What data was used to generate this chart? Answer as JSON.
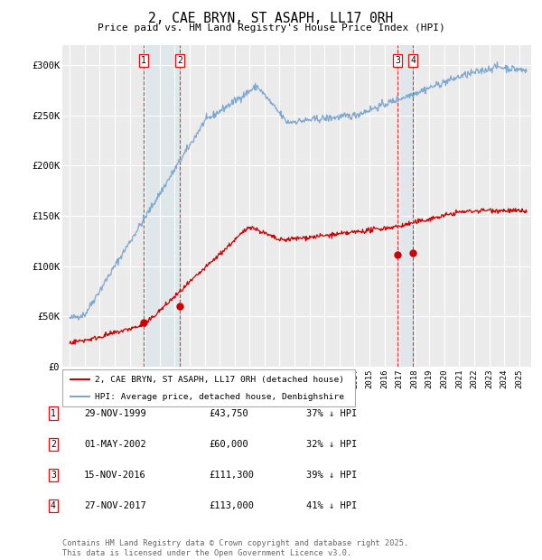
{
  "title": "2, CAE BRYN, ST ASAPH, LL17 0RH",
  "subtitle": "Price paid vs. HM Land Registry's House Price Index (HPI)",
  "ylim": [
    0,
    320000
  ],
  "yticks": [
    0,
    50000,
    100000,
    150000,
    200000,
    250000,
    300000
  ],
  "ytick_labels": [
    "£0",
    "£50K",
    "£100K",
    "£150K",
    "£200K",
    "£250K",
    "£300K"
  ],
  "background_color": "#ffffff",
  "plot_bg_color": "#ebebeb",
  "grid_color": "#ffffff",
  "hpi_color": "#7fa8d0",
  "price_color": "#cc0000",
  "purchases": [
    {
      "label": "1",
      "date_x": 1999.91,
      "price": 43750,
      "date_str": "29-NOV-1999",
      "pct": "37%"
    },
    {
      "label": "2",
      "date_x": 2002.33,
      "price": 60000,
      "date_str": "01-MAY-2002",
      "pct": "32%"
    },
    {
      "label": "3",
      "date_x": 2016.88,
      "price": 111300,
      "date_str": "15-NOV-2016",
      "pct": "39%"
    },
    {
      "label": "4",
      "date_x": 2017.91,
      "price": 113000,
      "date_str": "27-NOV-2017",
      "pct": "41%"
    }
  ],
  "legend_line1": "2, CAE BRYN, ST ASAPH, LL17 0RH (detached house)",
  "legend_line2": "HPI: Average price, detached house, Denbighshire",
  "footer": "Contains HM Land Registry data © Crown copyright and database right 2025.\nThis data is licensed under the Open Government Licence v3.0.",
  "xlim_left": 1994.5,
  "xlim_right": 2025.8
}
